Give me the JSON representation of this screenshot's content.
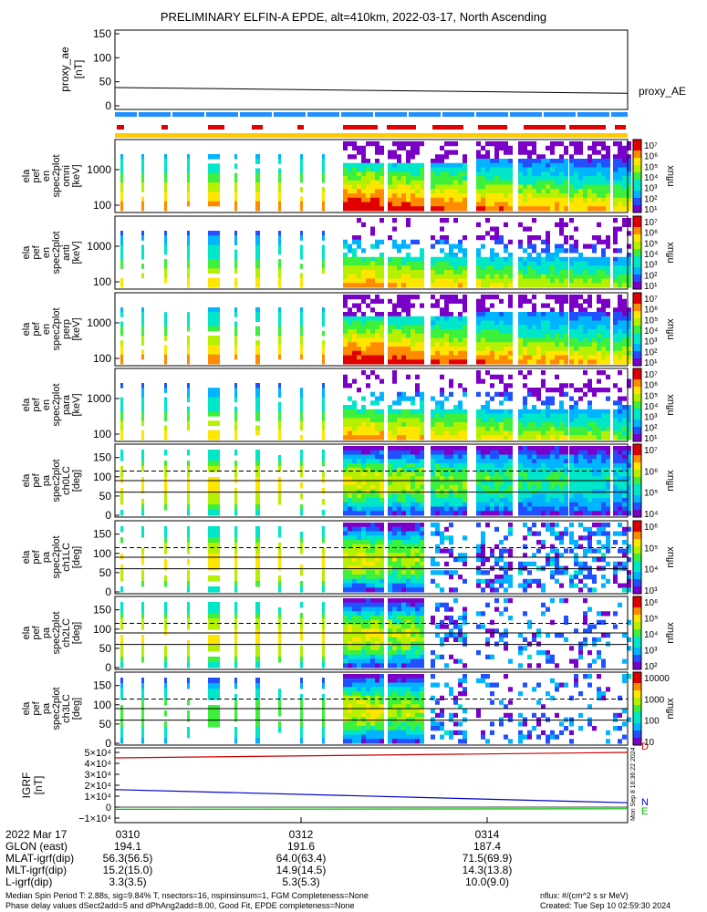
{
  "title": "PRELIMINARY ELFIN-A EPDE, alt=410km, 2022-03-17, North Ascending",
  "colors": {
    "mlt_blue": "#1e90ff",
    "mlt_red": "#e00000",
    "bar_yellow": "#ffcc00",
    "trace_black": "#000000",
    "igrf_red": "#cc0000",
    "igrf_blue": "#0000cc",
    "igrf_green": "#00bb00"
  },
  "proxy_ae": {
    "ylabel_lines": [
      "proxy_ae",
      "[nT]"
    ],
    "legend": "proxy_AE",
    "ticks": [
      "150",
      "100",
      "50",
      "0"
    ],
    "ylim": [
      0,
      150
    ],
    "series": {
      "x": [
        "0308:30",
        "0315:30"
      ],
      "values": [
        38,
        26
      ]
    }
  },
  "panels": [
    {
      "label_lines": [
        "ela",
        "pef",
        "en",
        "spec2plot",
        "omni",
        "[keV]"
      ],
      "ticks": [
        "1000",
        "100"
      ],
      "cbar_label": "nflux",
      "cbar_ticks": [
        "10⁷",
        "10⁶",
        "10⁵",
        "10⁴",
        "10³",
        "10²",
        "10¹"
      ]
    },
    {
      "label_lines": [
        "ela",
        "pef",
        "en",
        "spec2plot",
        "anti",
        "[keV]"
      ],
      "ticks": [
        "1000",
        "100"
      ],
      "cbar_label": "nflux",
      "cbar_ticks": [
        "10⁷",
        "10⁶",
        "10⁵",
        "10⁴",
        "10³",
        "10²",
        "10¹"
      ]
    },
    {
      "label_lines": [
        "ela",
        "pef",
        "en",
        "spec2plot",
        "perp",
        "[keV]"
      ],
      "ticks": [
        "1000",
        "100"
      ],
      "cbar_label": "nflux",
      "cbar_ticks": [
        "10⁷",
        "10⁶",
        "10⁵",
        "10⁴",
        "10³",
        "10²",
        "10¹"
      ]
    },
    {
      "label_lines": [
        "ela",
        "pef",
        "en",
        "spec2plot",
        "para",
        "[keV]"
      ],
      "ticks": [
        "1000",
        "100"
      ],
      "cbar_label": "nflux",
      "cbar_ticks": [
        "10⁷",
        "10⁶",
        "10⁵",
        "10⁴",
        "10³",
        "10²",
        "10¹"
      ]
    },
    {
      "label_lines": [
        "ela",
        "pef",
        "pa",
        "spec2plot",
        "ch0LC",
        "[deg]"
      ],
      "ticks": [
        "150",
        "100",
        "50",
        "0"
      ],
      "cbar_label": "nflux",
      "cbar_ticks": [
        "10⁷",
        "10⁶",
        "10⁵",
        "10⁴"
      ]
    },
    {
      "label_lines": [
        "ela",
        "pef",
        "pa",
        "spec2plot",
        "ch1LC",
        "[deg]"
      ],
      "ticks": [
        "150",
        "100",
        "50",
        "0"
      ],
      "cbar_label": "nflux",
      "cbar_ticks": [
        "10⁶",
        "10⁵",
        "10⁴",
        "10³"
      ]
    },
    {
      "label_lines": [
        "ela",
        "pef",
        "pa",
        "spec2plot",
        "ch2LC",
        "[deg]"
      ],
      "ticks": [
        "150",
        "100",
        "50",
        "0"
      ],
      "cbar_label": "nflux",
      "cbar_ticks": [
        "10⁶",
        "10⁵",
        "10⁴",
        "10³",
        "10²"
      ]
    },
    {
      "label_lines": [
        "ela",
        "pef",
        "pa",
        "spec2plot",
        "ch3LC",
        "[deg]"
      ],
      "ticks": [
        "150",
        "100",
        "50",
        "0"
      ],
      "cbar_label": "nflux",
      "cbar_ticks": [
        "10000",
        "1000",
        "100",
        "10"
      ]
    }
  ],
  "igrf": {
    "ylabel_lines": [
      "IGRF",
      "[nT]"
    ],
    "ticks": [
      "5×10⁴",
      "4×10⁴",
      "3×10⁴",
      "2×10⁴",
      "1×10⁴",
      "0",
      "−1×10⁴"
    ],
    "legend": [
      "D",
      "N",
      "E"
    ],
    "stamp": "Mon Sep 8 16:36:22 2024"
  },
  "chart_data": {
    "type": "heatmap",
    "title": "PRELIMINARY ELFIN-A EPDE, alt=410km, 2022-03-17, North Ascending",
    "x_ticks": [
      "0310",
      "0312",
      "0314"
    ],
    "ae_series": {
      "x": [
        "0308:30",
        "0315:30"
      ],
      "values": [
        38,
        26
      ],
      "ylim": [
        0,
        150
      ]
    },
    "pitch_angle_reference_deg": [
      60,
      90,
      115
    ],
    "igrf_series": [
      {
        "name": "D",
        "values": [
          45000,
          50000
        ]
      },
      {
        "name": "N",
        "values": [
          16000,
          4000
        ]
      },
      {
        "name": "E",
        "values": [
          -2000,
          -1500
        ]
      }
    ],
    "igrf_ylim": [
      -10000,
      50000
    ]
  },
  "footer": {
    "rows": [
      {
        "label": "2022 Mar 17",
        "v1": "0310",
        "v2": "0312",
        "v3": "0314"
      },
      {
        "label": "GLON (east)",
        "v1": "194.1",
        "v2": "191.6",
        "v3": "187.4"
      },
      {
        "label": "MLAT-igrf(dip)",
        "v1": "56.3(56.5)",
        "v2": "64.0(63.4)",
        "v3": "71.5(69.9)"
      },
      {
        "label": "MLT-igrf(dip)",
        "v1": "15.2(15.0)",
        "v2": "14.9(14.5)",
        "v3": "14.3(13.8)"
      },
      {
        "label": "L-igrf(dip)",
        "v1": "3.3(3.5)",
        "v2": "5.3(5.3)",
        "v3": "10.0(9.0)"
      }
    ],
    "note1": "Median Spin Period T: 2.88s, sig=9.84% T, nsectors=16, nspinsinsum=1, FGM Completeness=None",
    "note2": "Phase delay values dSect2add=5 and dPhAng2add=8.00, Good Fit, EPDE completeness=None",
    "units": "nflux: #/(cm^2 s sr MeV)",
    "created": "Created: Tue Sep 10 02:59:30 2024"
  }
}
